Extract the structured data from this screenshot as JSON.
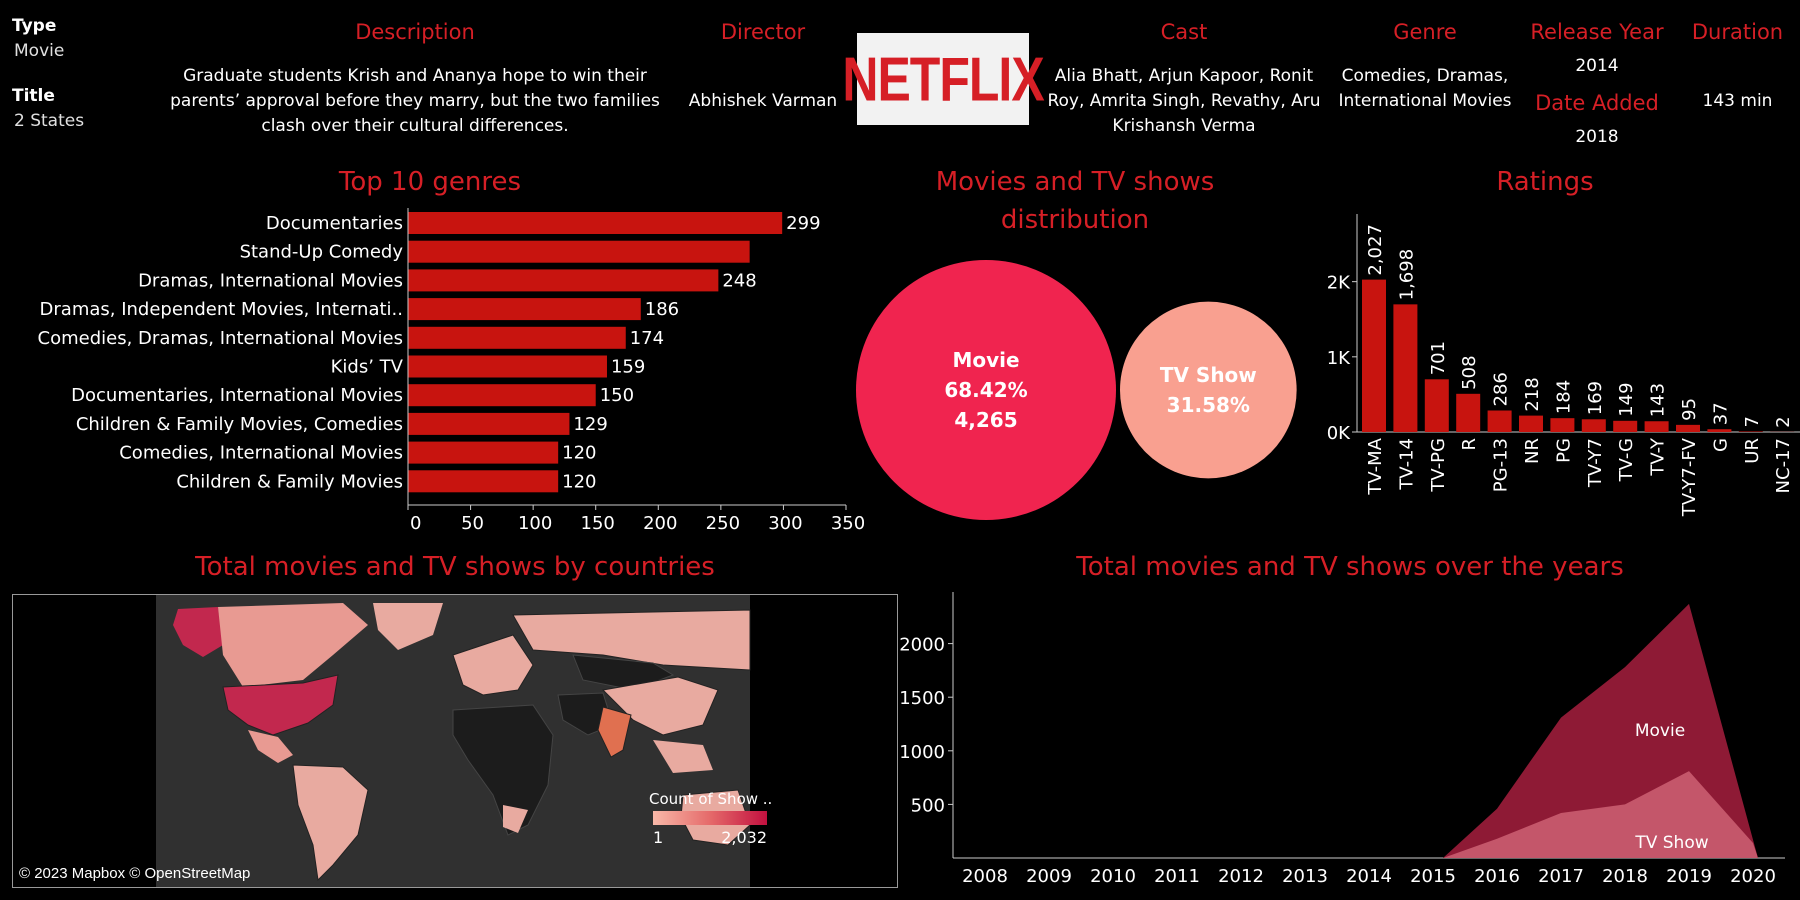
{
  "details": {
    "type_label": "Type",
    "type_value": "Movie",
    "title_label": "Title",
    "title_value": "2 States",
    "description_label": "Description",
    "description_value": "Graduate students Krish and Ananya hope to win their parents’ approval before they marry, but the two families clash over their cultural differences.",
    "director_label": "Director",
    "director_value": "Abhishek Varman",
    "logo_text": "NETFLIX",
    "cast_label": "Cast",
    "cast_value": "Alia Bhatt, Arjun Kapoor, Ronit Roy, Amrita Singh, Revathy, Aru Krishansh Verma",
    "genre_label": "Genre",
    "genre_value": "Comedies, Dramas, International Movies",
    "release_year_label": "Release Year",
    "release_year_value": "2014",
    "date_added_label": "Date Added",
    "date_added_value": "2018",
    "duration_label": "Duration",
    "duration_value": "143 min"
  },
  "colors": {
    "accent_red": "#d61f26",
    "bar_red": "#c8140f",
    "movie_bubble": "#f0244f",
    "tvshow_bubble": "#f9a090",
    "movie_area": "#8e1a35",
    "tvshow_area": "#c4566a"
  },
  "map": {
    "title": "Total movies and TV shows by countries",
    "legend_title": "Count of Show ..",
    "legend_min": "1",
    "legend_max": "2,032",
    "attribution": "© 2023 Mapbox © OpenStreetMap"
  },
  "chart_data": [
    {
      "type": "bar",
      "orientation": "horizontal",
      "title": "Top 10 genres",
      "categories": [
        "Documentaries",
        "Stand-Up Comedy",
        "Dramas, International Movies",
        "Dramas, Independent Movies, Internati..",
        "Comedies, Dramas, International Movies",
        "Kids’ TV",
        "Documentaries, International Movies",
        "Children & Family Movies, Comedies",
        "Comedies, International Movies",
        "Children & Family Movies"
      ],
      "values": [
        299,
        273,
        248,
        186,
        174,
        159,
        150,
        129,
        120,
        120
      ],
      "value_labels": [
        "299",
        "",
        "248",
        "186",
        "174",
        "159",
        "150",
        "129",
        "120",
        "120"
      ],
      "xlim": [
        0,
        350
      ],
      "xticks": [
        "0",
        "50",
        "100",
        "150",
        "200",
        "250",
        "300",
        "350"
      ]
    },
    {
      "type": "bubble",
      "title": "Movies and TV shows distribution",
      "categories": [
        "Movie",
        "TV Show"
      ],
      "values": [
        68.42,
        31.58
      ],
      "labels": [
        [
          "Movie",
          "68.42%",
          "4,265"
        ],
        [
          "TV Show",
          "31.58%"
        ]
      ]
    },
    {
      "type": "bar",
      "title": "Ratings",
      "categories": [
        "TV-MA",
        "TV-14",
        "TV-PG",
        "R",
        "PG-13",
        "NR",
        "PG",
        "TV-Y7",
        "TV-G",
        "TV-Y",
        "TV-Y7-FV",
        "G",
        "UR",
        "NC-17"
      ],
      "values": [
        2027,
        1698,
        701,
        508,
        286,
        218,
        184,
        169,
        149,
        143,
        95,
        37,
        7,
        2
      ],
      "value_labels": [
        "2,027",
        "1,698",
        "701",
        "508",
        "286",
        "218",
        "184",
        "169",
        "149",
        "143",
        "95",
        "37",
        "7",
        "2"
      ],
      "ylim": [
        0,
        2900
      ],
      "yticks": [
        "0K",
        "1K",
        "2K"
      ]
    },
    {
      "type": "area",
      "title": "Total movies and TV shows over the years",
      "x": [
        "2008",
        "2009",
        "2010",
        "2011",
        "2012",
        "2013",
        "2014",
        "2015",
        "2016",
        "2017",
        "2018",
        "2019",
        "2020"
      ],
      "series": [
        {
          "name": "Movie",
          "values": [
            0,
            0,
            0,
            0,
            0,
            0,
            0,
            0,
            460,
            1310,
            1780,
            2370,
            170
          ]
        },
        {
          "name": "TV Show",
          "values": [
            0,
            0,
            0,
            0,
            0,
            0,
            0,
            0,
            180,
            420,
            500,
            810,
            140
          ]
        }
      ],
      "ylim": [
        0,
        2500
      ],
      "yticks": [
        "500",
        "1000",
        "1500",
        "2000"
      ]
    }
  ]
}
